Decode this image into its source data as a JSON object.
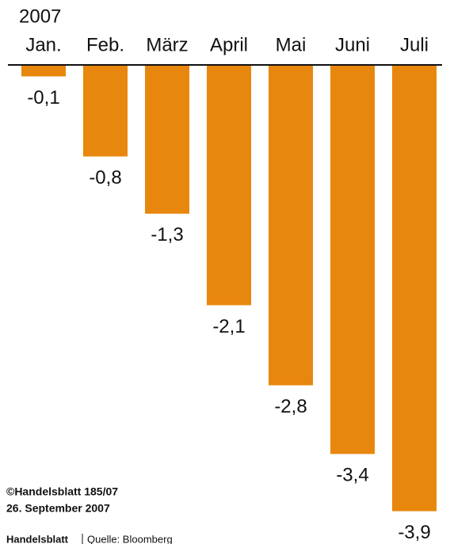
{
  "chart_data": {
    "type": "bar",
    "subtitle": "2007",
    "categories": [
      "Jan.",
      "Feb.",
      "März",
      "April",
      "Mai",
      "Juni",
      "Juli"
    ],
    "values": [
      -0.1,
      -0.8,
      -1.3,
      -2.1,
      -2.8,
      -3.4,
      -3.9
    ],
    "value_labels": [
      "-0,1",
      "-0,8",
      "-1,3",
      "-2,1",
      "-2,8",
      "-3,4",
      "-3,9"
    ],
    "color": "#e8870e",
    "ylim": [
      -4,
      0
    ],
    "grid": false,
    "annotations": [
      "©Handelsblatt 185/07",
      "26. September 2007",
      "Handelsblatt",
      "Quelle: Bloomberg"
    ]
  }
}
